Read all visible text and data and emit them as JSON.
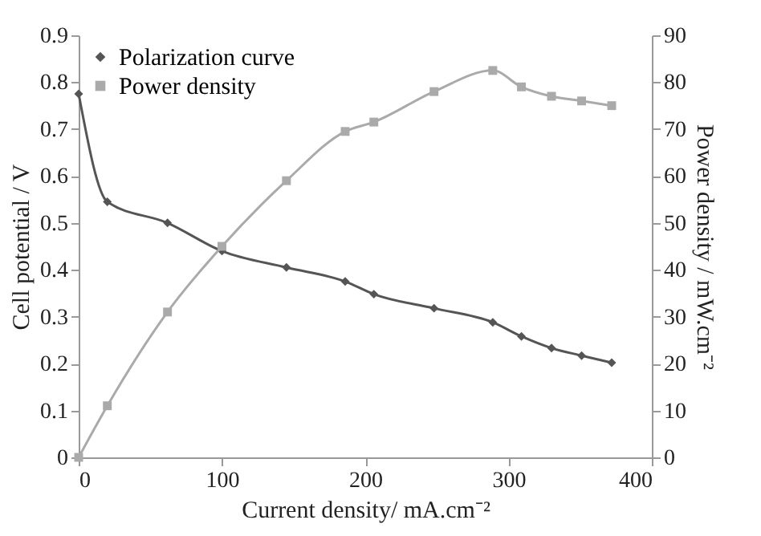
{
  "chart_data": {
    "type": "line",
    "xlabel": "Current density/ mA.cm⁻²",
    "ylabel": "Cell potential / V",
    "y2label": "Power density / mW.cm⁻²",
    "x": [
      0,
      20,
      62,
      100,
      145,
      186,
      206,
      248,
      289,
      309,
      330,
      351,
      372
    ],
    "series": [
      {
        "name": "Polarization curve",
        "color": "#555555",
        "marker": "diamond",
        "values": [
          0.775,
          0.545,
          0.5,
          0.44,
          0.405,
          0.375,
          0.348,
          0.318,
          0.288,
          0.258,
          0.233,
          0.217,
          0.202
        ]
      },
      {
        "name": "Power density",
        "color": "#aaaaaa",
        "marker": "square",
        "axis": "y2",
        "values": [
          0,
          11,
          31,
          45,
          59,
          69.5,
          71.5,
          78,
          82.5,
          79,
          77,
          76,
          75
        ]
      }
    ],
    "xlim": [
      0,
      400
    ],
    "xticks": [
      0,
      100,
      200,
      300,
      400
    ],
    "ylim": [
      0,
      0.9
    ],
    "yticks": [
      0,
      0.1,
      0.2,
      0.3,
      0.4,
      0.5,
      0.6,
      0.7,
      0.8,
      0.9
    ],
    "y2lim": [
      0,
      90
    ],
    "y2ticks": [
      0,
      10,
      20,
      30,
      40,
      50,
      60,
      70,
      80,
      90
    ],
    "grid": false,
    "legend": "top left",
    "line_style": "solid"
  }
}
